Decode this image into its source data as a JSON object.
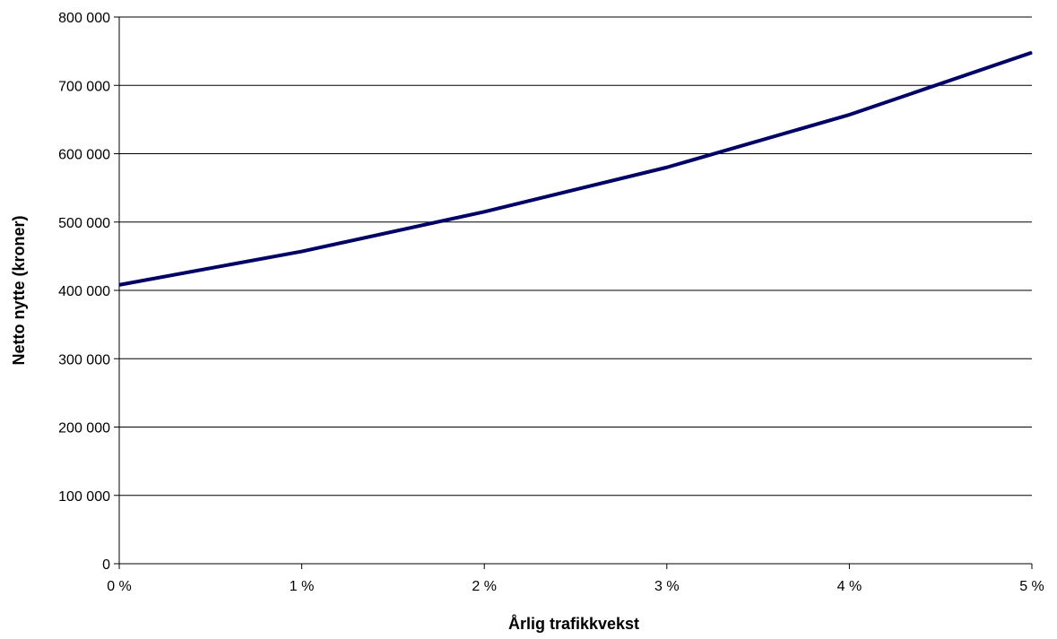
{
  "chart_data": {
    "type": "line",
    "title": "",
    "xlabel": "Årlig trafikkvekst",
    "ylabel": "Netto nytte (kroner)",
    "x": [
      0,
      1,
      2,
      3,
      4,
      5
    ],
    "x_tick_labels": [
      "0 %",
      "1 %",
      "2 %",
      "3 %",
      "4 %",
      "5 %"
    ],
    "y_tick_labels": [
      "0",
      "100 000",
      "200 000",
      "300 000",
      "400 000",
      "500 000",
      "600 000",
      "700 000",
      "800 000"
    ],
    "y_ticks": [
      0,
      100000,
      200000,
      300000,
      400000,
      500000,
      600000,
      700000,
      800000
    ],
    "xlim": [
      0,
      5
    ],
    "ylim": [
      0,
      800000
    ],
    "grid": "horizontal",
    "series": [
      {
        "values": [
          408000,
          457000,
          515000,
          580000,
          657000,
          748000
        ],
        "color": "#000066"
      }
    ]
  }
}
